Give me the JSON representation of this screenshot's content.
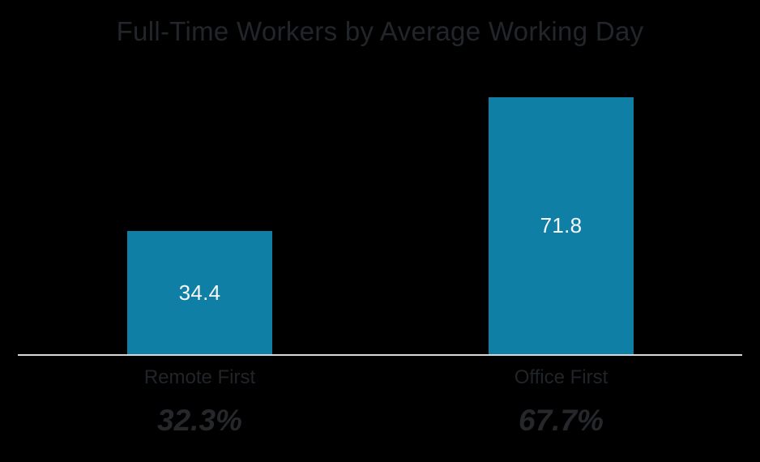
{
  "chart_data": {
    "type": "bar",
    "title": "Full-Time Workers by Average Working Day",
    "categories": [
      "Remote First",
      "Office First"
    ],
    "values": [
      34.4,
      71.8
    ],
    "value_labels": [
      "34.4",
      "71.8"
    ],
    "share_labels": [
      "32.3%",
      "67.7%"
    ],
    "xlabel": "",
    "ylabel": "",
    "ylim": [
      0,
      80
    ],
    "grid": false,
    "legend": false,
    "value_label_position": "inside-center",
    "colors": {
      "background": "#000000",
      "bar": "#0f7fa6",
      "bar_value_text": "#f7f7f7",
      "title_text": "#22252a",
      "category_text": "#212428",
      "share_text": "#26272b",
      "axis_line": "#d8d8d8"
    }
  }
}
